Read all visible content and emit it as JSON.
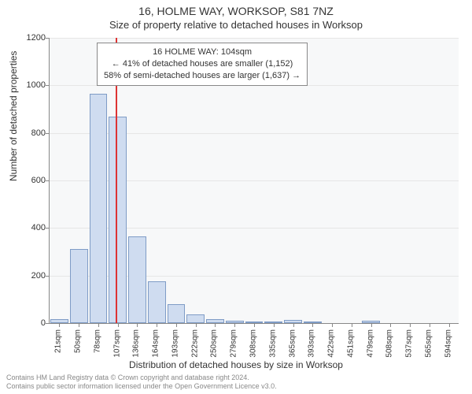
{
  "header": {
    "address": "16, HOLME WAY, WORKSOP, S81 7NZ",
    "subtitle": "Size of property relative to detached houses in Worksop"
  },
  "annotation": {
    "line1": "16 HOLME WAY: 104sqm",
    "line2": "← 41% of detached houses are smaller (1,152)",
    "line3": "58% of semi-detached houses are larger (1,637) →",
    "box_border": "#888888",
    "box_bg": "#ffffff",
    "fontsize": 11
  },
  "chart": {
    "type": "histogram",
    "background_color": "#f7f8f9",
    "grid_color": "#e6e6e6",
    "axis_color": "#888888",
    "bar_fill": "#cfdcf0",
    "bar_border": "#7f9cc6",
    "reference_line_color": "#dd3333",
    "reference_value_sqm": 104,
    "ylim": [
      0,
      1200
    ],
    "ytick_step": 200,
    "ylabel": "Number of detached properties",
    "xlabel": "Distribution of detached houses by size in Worksop",
    "x_categories": [
      "21sqm",
      "50sqm",
      "78sqm",
      "107sqm",
      "136sqm",
      "164sqm",
      "193sqm",
      "222sqm",
      "250sqm",
      "279sqm",
      "308sqm",
      "335sqm",
      "365sqm",
      "393sqm",
      "422sqm",
      "451sqm",
      "479sqm",
      "508sqm",
      "537sqm",
      "565sqm",
      "594sqm"
    ],
    "values": [
      15,
      310,
      965,
      870,
      365,
      175,
      80,
      35,
      15,
      10,
      8,
      7,
      12,
      5,
      0,
      0,
      10,
      0,
      0,
      0,
      0
    ],
    "label_fontsize": 12,
    "tick_fontsize": 11
  },
  "footer": {
    "line1": "Contains HM Land Registry data © Crown copyright and database right 2024.",
    "line2": "Contains public sector information licensed under the Open Government Licence v3.0."
  }
}
